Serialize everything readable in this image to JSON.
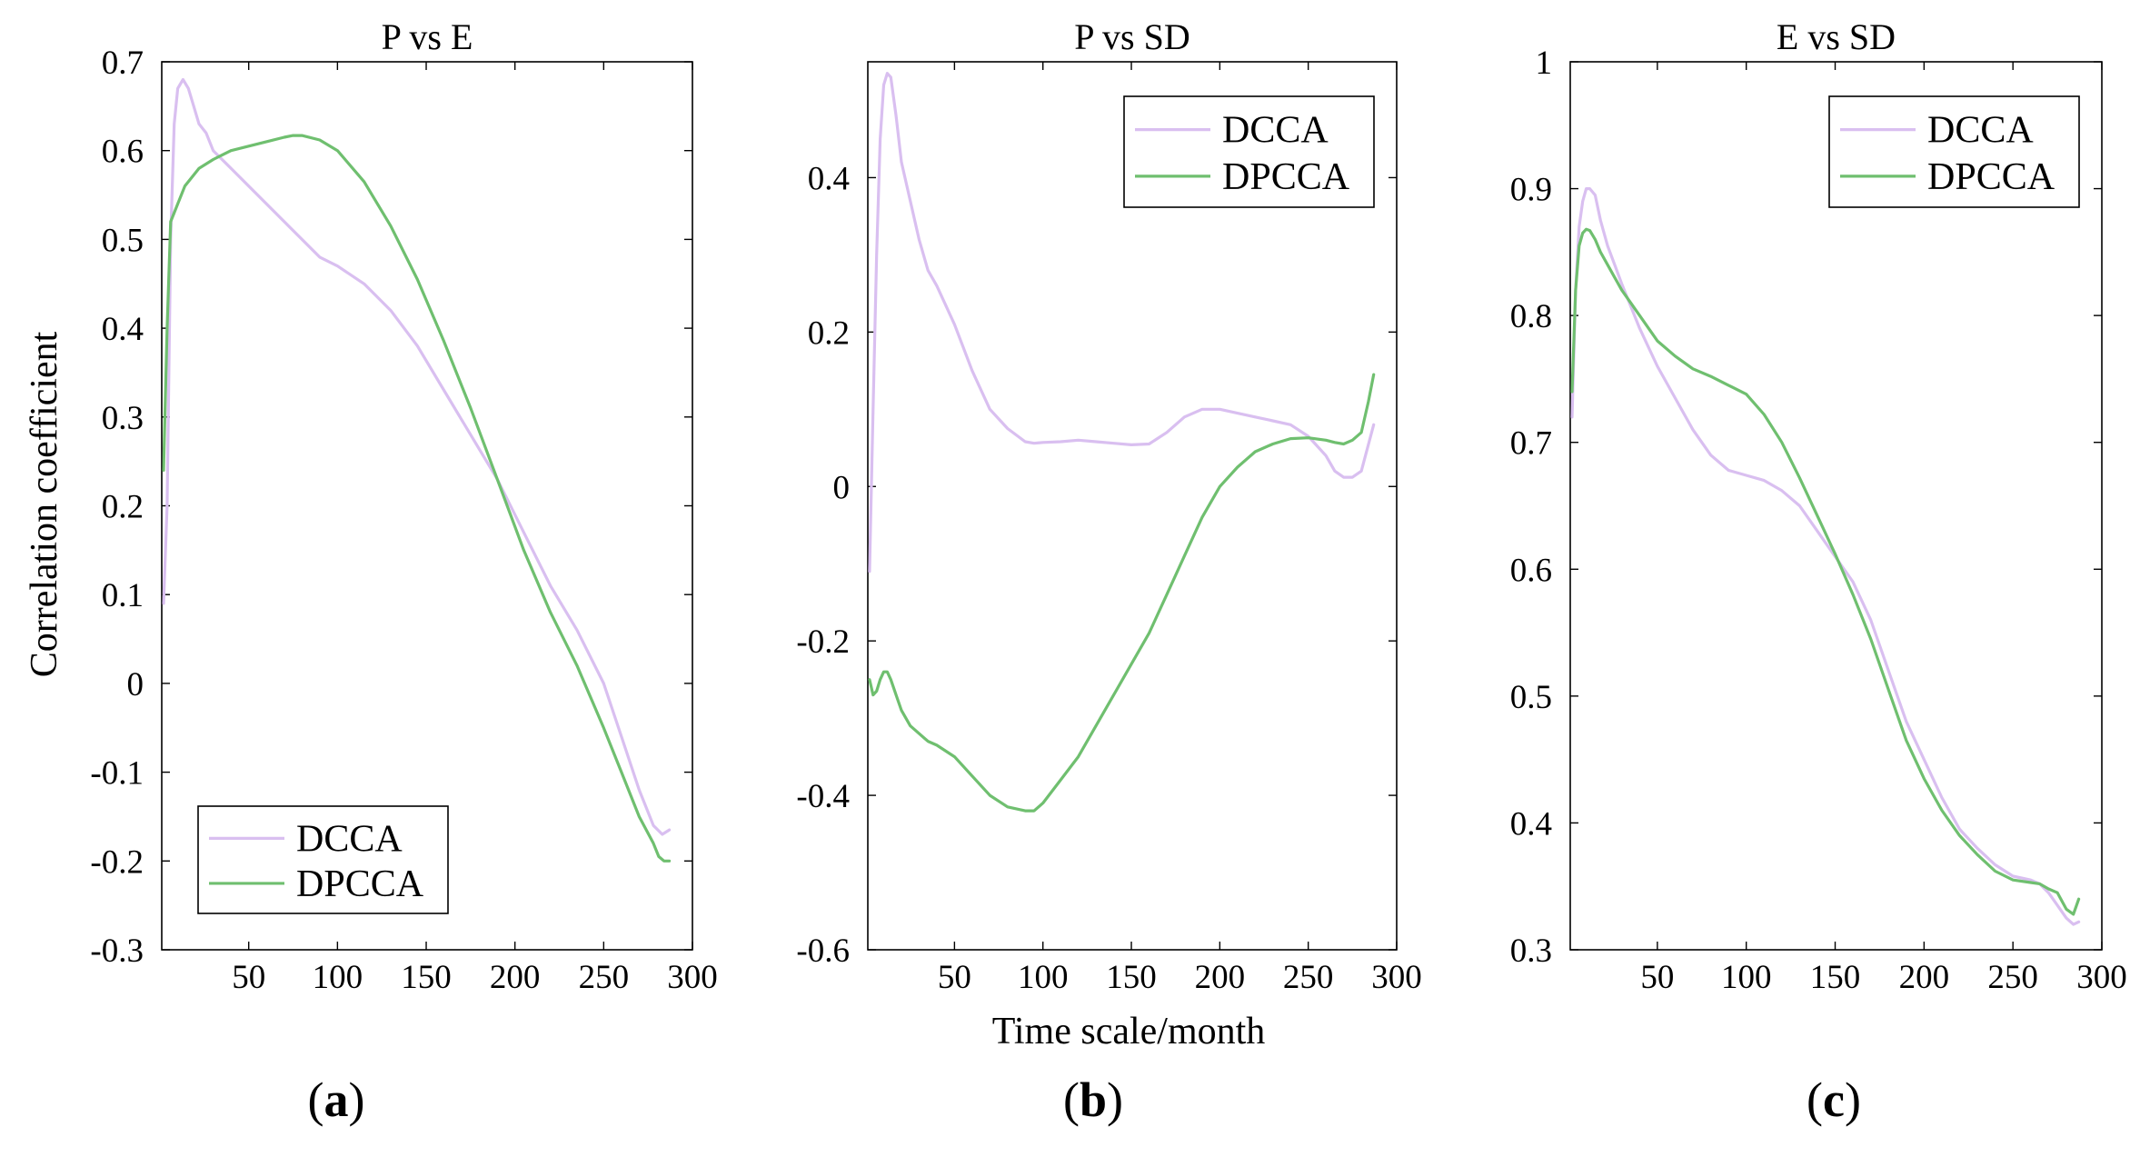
{
  "figure": {
    "ylabel": "Correlation coefficient",
    "xlabel": "Time scale/month"
  },
  "colors": {
    "DCCA": "#d9bff0",
    "DPCCA": "#6fbf6f",
    "axis": "#000000"
  },
  "chart_data": [
    {
      "type": "line",
      "panel_label": "a",
      "title": "P vs E",
      "xlim": [
        1,
        300
      ],
      "ylim": [
        -0.3,
        0.7
      ],
      "xticks": [
        50,
        100,
        150,
        200,
        250,
        300
      ],
      "xtick_labels": [
        "50",
        "100",
        "150",
        "200",
        "250",
        "300"
      ],
      "yticks": [
        -0.3,
        -0.2,
        -0.1,
        0,
        0.1,
        0.2,
        0.3,
        0.4,
        0.5,
        0.6,
        0.7
      ],
      "ytick_labels": [
        "-0.3",
        "-0.2",
        "-0.1",
        "0",
        "0.1",
        "0.2",
        "0.3",
        "0.4",
        "0.5",
        "0.6",
        "0.7"
      ],
      "legend_position": "bottom-left",
      "series": [
        {
          "name": "DCCA",
          "x": [
            2,
            4,
            6,
            8,
            10,
            13,
            16,
            19,
            22,
            26,
            30,
            35,
            40,
            50,
            60,
            70,
            80,
            90,
            100,
            115,
            130,
            145,
            160,
            175,
            190,
            205,
            220,
            235,
            250,
            260,
            270,
            278,
            283,
            287
          ],
          "y": [
            0.09,
            0.2,
            0.5,
            0.63,
            0.67,
            0.68,
            0.67,
            0.65,
            0.63,
            0.62,
            0.6,
            0.59,
            0.58,
            0.56,
            0.54,
            0.52,
            0.5,
            0.48,
            0.47,
            0.45,
            0.42,
            0.38,
            0.33,
            0.28,
            0.23,
            0.17,
            0.11,
            0.06,
            0.0,
            -0.06,
            -0.12,
            -0.16,
            -0.17,
            -0.165
          ]
        },
        {
          "name": "DPCCA",
          "x": [
            2,
            4,
            6,
            8,
            10,
            14,
            18,
            22,
            26,
            30,
            35,
            40,
            50,
            60,
            70,
            75,
            80,
            90,
            100,
            115,
            130,
            145,
            160,
            175,
            190,
            205,
            220,
            235,
            250,
            260,
            270,
            278,
            281,
            284,
            287
          ],
          "y": [
            0.24,
            0.4,
            0.52,
            0.53,
            0.54,
            0.56,
            0.57,
            0.58,
            0.585,
            0.59,
            0.595,
            0.6,
            0.605,
            0.61,
            0.615,
            0.617,
            0.617,
            0.612,
            0.6,
            0.565,
            0.515,
            0.455,
            0.385,
            0.31,
            0.23,
            0.15,
            0.08,
            0.02,
            -0.05,
            -0.1,
            -0.15,
            -0.18,
            -0.195,
            -0.2,
            -0.2
          ]
        }
      ]
    },
    {
      "type": "line",
      "panel_label": "b",
      "title": "P vs SD",
      "xlim": [
        1,
        300
      ],
      "ylim": [
        -0.6,
        0.55
      ],
      "xticks": [
        50,
        100,
        150,
        200,
        250,
        300
      ],
      "xtick_labels": [
        "50",
        "100",
        "150",
        "200",
        "250",
        "300"
      ],
      "yticks": [
        -0.6,
        -0.4,
        -0.2,
        0,
        0.2,
        0.4
      ],
      "ytick_labels": [
        "-0.6",
        "-0.4",
        "-0.2",
        "0",
        "0.2",
        "0.4"
      ],
      "legend_position": "top-right",
      "series": [
        {
          "name": "DCCA",
          "x": [
            2,
            4,
            6,
            8,
            10,
            12,
            14,
            17,
            20,
            25,
            30,
            35,
            40,
            50,
            60,
            70,
            80,
            90,
            95,
            100,
            110,
            120,
            130,
            140,
            150,
            160,
            170,
            180,
            190,
            200,
            210,
            220,
            230,
            240,
            250,
            260,
            265,
            270,
            275,
            280,
            287
          ],
          "y": [
            -0.11,
            0.1,
            0.3,
            0.45,
            0.52,
            0.535,
            0.53,
            0.48,
            0.42,
            0.37,
            0.32,
            0.28,
            0.26,
            0.21,
            0.15,
            0.1,
            0.075,
            0.058,
            0.056,
            0.057,
            0.058,
            0.06,
            0.058,
            0.056,
            0.054,
            0.055,
            0.07,
            0.09,
            0.1,
            0.1,
            0.095,
            0.09,
            0.085,
            0.08,
            0.065,
            0.04,
            0.02,
            0.012,
            0.012,
            0.02,
            0.08
          ]
        },
        {
          "name": "DPCCA",
          "x": [
            2,
            4,
            6,
            8,
            10,
            12,
            14,
            17,
            20,
            25,
            30,
            35,
            40,
            50,
            60,
            70,
            80,
            90,
            95,
            100,
            110,
            120,
            130,
            140,
            150,
            160,
            170,
            180,
            190,
            200,
            210,
            220,
            230,
            240,
            250,
            260,
            265,
            270,
            275,
            280,
            284,
            287
          ],
          "y": [
            -0.25,
            -0.27,
            -0.265,
            -0.25,
            -0.24,
            -0.24,
            -0.25,
            -0.27,
            -0.29,
            -0.31,
            -0.32,
            -0.33,
            -0.335,
            -0.35,
            -0.375,
            -0.4,
            -0.415,
            -0.42,
            -0.42,
            -0.41,
            -0.38,
            -0.35,
            -0.31,
            -0.27,
            -0.23,
            -0.19,
            -0.14,
            -0.09,
            -0.04,
            0.0,
            0.025,
            0.045,
            0.055,
            0.062,
            0.063,
            0.06,
            0.057,
            0.055,
            0.06,
            0.07,
            0.11,
            0.145
          ]
        }
      ]
    },
    {
      "type": "line",
      "panel_label": "c",
      "title": "E vs SD",
      "xlim": [
        1,
        300
      ],
      "ylim": [
        0.3,
        1.0
      ],
      "xticks": [
        50,
        100,
        150,
        200,
        250,
        300
      ],
      "xtick_labels": [
        "50",
        "100",
        "150",
        "200",
        "250",
        "300"
      ],
      "yticks": [
        0.3,
        0.4,
        0.5,
        0.6,
        0.7,
        0.8,
        0.9,
        1.0
      ],
      "ytick_labels": [
        "0.3",
        "0.4",
        "0.5",
        "0.6",
        "0.7",
        "0.8",
        "0.9",
        "1"
      ],
      "legend_position": "top-right",
      "series": [
        {
          "name": "DCCA",
          "x": [
            2,
            4,
            6,
            8,
            10,
            12,
            15,
            18,
            22,
            26,
            30,
            40,
            50,
            60,
            70,
            80,
            90,
            100,
            110,
            120,
            130,
            140,
            150,
            160,
            170,
            180,
            190,
            200,
            210,
            220,
            230,
            240,
            250,
            260,
            265,
            270,
            275,
            280,
            284,
            287
          ],
          "y": [
            0.72,
            0.82,
            0.87,
            0.89,
            0.9,
            0.9,
            0.895,
            0.875,
            0.855,
            0.84,
            0.825,
            0.79,
            0.76,
            0.735,
            0.71,
            0.69,
            0.678,
            0.674,
            0.67,
            0.662,
            0.65,
            0.63,
            0.61,
            0.59,
            0.56,
            0.52,
            0.48,
            0.45,
            0.42,
            0.395,
            0.38,
            0.367,
            0.358,
            0.355,
            0.352,
            0.345,
            0.335,
            0.325,
            0.32,
            0.322
          ]
        },
        {
          "name": "DPCCA",
          "x": [
            2,
            4,
            6,
            8,
            10,
            12,
            15,
            18,
            22,
            26,
            30,
            40,
            50,
            60,
            70,
            80,
            90,
            100,
            110,
            120,
            130,
            140,
            150,
            160,
            170,
            180,
            190,
            200,
            210,
            220,
            230,
            240,
            250,
            260,
            265,
            270,
            275,
            280,
            284,
            287
          ],
          "y": [
            0.74,
            0.82,
            0.855,
            0.865,
            0.868,
            0.867,
            0.86,
            0.85,
            0.84,
            0.83,
            0.82,
            0.8,
            0.78,
            0.768,
            0.758,
            0.752,
            0.745,
            0.738,
            0.722,
            0.7,
            0.672,
            0.642,
            0.612,
            0.58,
            0.545,
            0.505,
            0.465,
            0.435,
            0.41,
            0.39,
            0.375,
            0.362,
            0.355,
            0.353,
            0.352,
            0.348,
            0.345,
            0.332,
            0.328,
            0.34
          ]
        }
      ]
    }
  ]
}
